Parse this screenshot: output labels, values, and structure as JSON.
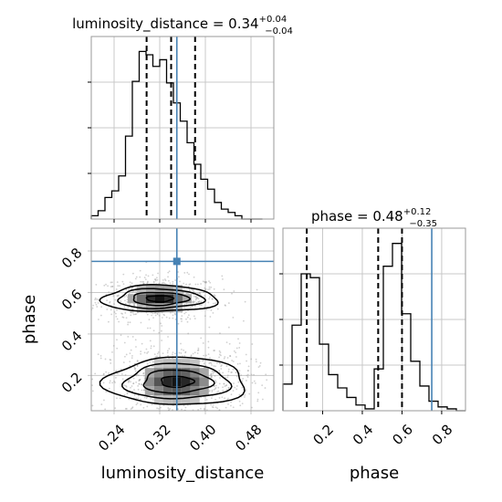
{
  "chart_data": {
    "type": "corner",
    "parameters": [
      "luminosity_distance",
      "phase"
    ],
    "truths": {
      "luminosity_distance": 0.35,
      "phase": 0.75
    },
    "panels": [
      {
        "id": "hist-luminosity-distance",
        "type": "histogram",
        "parameter": "luminosity_distance",
        "title_text": "luminosity_distance = 0.34",
        "title_sup": "+0.04",
        "title_sub": "−0.04",
        "xlim": [
          0.2,
          0.52
        ],
        "bin_edges": [
          0.2,
          0.212,
          0.224,
          0.236,
          0.248,
          0.26,
          0.272,
          0.284,
          0.296,
          0.308,
          0.32,
          0.332,
          0.344,
          0.356,
          0.368,
          0.38,
          0.392,
          0.404,
          0.416,
          0.428,
          0.44,
          0.452,
          0.464,
          0.476,
          0.488,
          0.5
        ],
        "counts": [
          0.2,
          0.5,
          1.3,
          1.7,
          2.6,
          5.0,
          8.3,
          10.1,
          9.9,
          9.2,
          9.6,
          8.2,
          7.0,
          5.9,
          4.6,
          3.3,
          2.4,
          1.8,
          1.0,
          0.6,
          0.4,
          0.2,
          0,
          0,
          0
        ],
        "ylim": [
          0,
          11
        ],
        "quantiles": [
          0.297,
          0.34,
          0.382
        ]
      },
      {
        "id": "hist-phase",
        "type": "histogram",
        "parameter": "phase",
        "title_text": "phase = 0.48",
        "title_sup": "+0.12",
        "title_sub": "−0.35",
        "xlim": [
          0.0,
          0.92
        ],
        "bin_edges": [
          0.0,
          0.046,
          0.092,
          0.138,
          0.184,
          0.23,
          0.276,
          0.322,
          0.368,
          0.414,
          0.46,
          0.506,
          0.552,
          0.598,
          0.644,
          0.69,
          0.736,
          0.782,
          0.828,
          0.874,
          0.92
        ],
        "counts": [
          1.4,
          4.5,
          7.2,
          7.0,
          3.5,
          1.9,
          1.2,
          0.7,
          0.3,
          0.1,
          2.2,
          7.6,
          8.8,
          5.1,
          2.6,
          1.3,
          0.5,
          0.2,
          0.1,
          0
        ],
        "ylim": [
          0,
          9.6
        ],
        "quantiles": [
          0.12,
          0.48,
          0.6
        ]
      },
      {
        "id": "joint",
        "type": "2d-contour",
        "x_parameter": "luminosity_distance",
        "y_parameter": "phase",
        "xlim": [
          0.2,
          0.52
        ],
        "ylim": [
          0.03,
          0.91
        ],
        "density_peaks": [
          {
            "x": 0.32,
            "y": 0.57,
            "sx": 0.045,
            "sy": 0.045
          },
          {
            "x": 0.35,
            "y": 0.17,
            "sx": 0.055,
            "sy": 0.075
          }
        ],
        "contour_levels": [
          "0.5-sigma",
          "1-sigma",
          "1.5-sigma",
          "2-sigma"
        ]
      }
    ],
    "axes": {
      "luminosity_distance": {
        "label": "luminosity_distance",
        "ticks": [
          0.24,
          0.32,
          0.4,
          0.48
        ],
        "tick_labels": [
          "0.24",
          "0.32",
          "0.40",
          "0.48"
        ]
      },
      "phase": {
        "label": "phase",
        "ticks": [
          0.2,
          0.4,
          0.6,
          0.8
        ],
        "tick_labels": [
          "0.2",
          "0.4",
          "0.6",
          "0.8"
        ]
      }
    },
    "grid": true,
    "colors": {
      "truth": "#4682b4",
      "hist": "#000000",
      "frame": "#999999",
      "grid": "#c8c8c8"
    }
  }
}
